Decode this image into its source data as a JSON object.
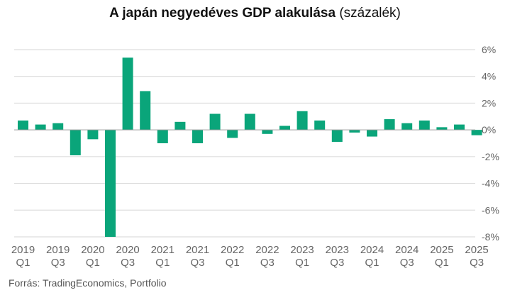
{
  "title_bold": "A japán negyedéves GDP alakulása",
  "title_normal": "(százalék)",
  "source": "Forrás: TradingEconomics, Portfolio",
  "colors": {
    "bar": "#0aa57a",
    "grid": "#d6d6d6",
    "zero": "#999999",
    "text": "#666666"
  },
  "chart_data": {
    "type": "bar",
    "title": "A japán negyedéves GDP alakulása (százalék)",
    "xlabel": "",
    "ylabel": "",
    "ylim": [
      -8,
      6
    ],
    "yticks": [
      6,
      4,
      2,
      0,
      -2,
      -4,
      -6,
      -8
    ],
    "ytick_labels": [
      "6%",
      "4%",
      "2%",
      "0%",
      "-2%",
      "-4%",
      "-6%",
      "-8%"
    ],
    "categories": [
      "2019 Q1",
      "2019 Q2",
      "2019 Q3",
      "2019 Q4",
      "2020 Q1",
      "2020 Q2",
      "2020 Q3",
      "2020 Q4",
      "2021 Q1",
      "2021 Q2",
      "2021 Q3",
      "2021 Q4",
      "2022 Q1",
      "2022 Q2",
      "2022 Q3",
      "2022 Q4",
      "2023 Q1",
      "2023 Q2",
      "2023 Q3",
      "2023 Q4",
      "2024 Q1",
      "2024 Q2",
      "2024 Q3",
      "2024 Q4",
      "2025 Q1",
      "2025 Q2",
      "2025 Q3"
    ],
    "values": [
      0.7,
      0.4,
      0.5,
      -1.9,
      -0.7,
      -8.0,
      5.4,
      2.9,
      -1.0,
      0.6,
      -1.0,
      1.2,
      -0.6,
      1.2,
      -0.3,
      0.3,
      1.4,
      0.7,
      -0.9,
      -0.2,
      -0.5,
      0.8,
      0.5,
      0.7,
      0.2,
      0.4,
      -0.4
    ],
    "xtick_labels": [
      {
        "year": "2019",
        "quarter": "Q1",
        "index": 0
      },
      {
        "year": "2019",
        "quarter": "Q3",
        "index": 2
      },
      {
        "year": "2020",
        "quarter": "Q1",
        "index": 4
      },
      {
        "year": "2020",
        "quarter": "Q3",
        "index": 6
      },
      {
        "year": "2021",
        "quarter": "Q1",
        "index": 8
      },
      {
        "year": "2021",
        "quarter": "Q3",
        "index": 10
      },
      {
        "year": "2022",
        "quarter": "Q1",
        "index": 12
      },
      {
        "year": "2022",
        "quarter": "Q3",
        "index": 14
      },
      {
        "year": "2023",
        "quarter": "Q1",
        "index": 16
      },
      {
        "year": "2023",
        "quarter": "Q3",
        "index": 18
      },
      {
        "year": "2024",
        "quarter": "Q1",
        "index": 20
      },
      {
        "year": "2024",
        "quarter": "Q3",
        "index": 22
      },
      {
        "year": "2025",
        "quarter": "Q1",
        "index": 24
      },
      {
        "year": "2025",
        "quarter": "Q3",
        "index": 26
      }
    ],
    "grid": true
  }
}
